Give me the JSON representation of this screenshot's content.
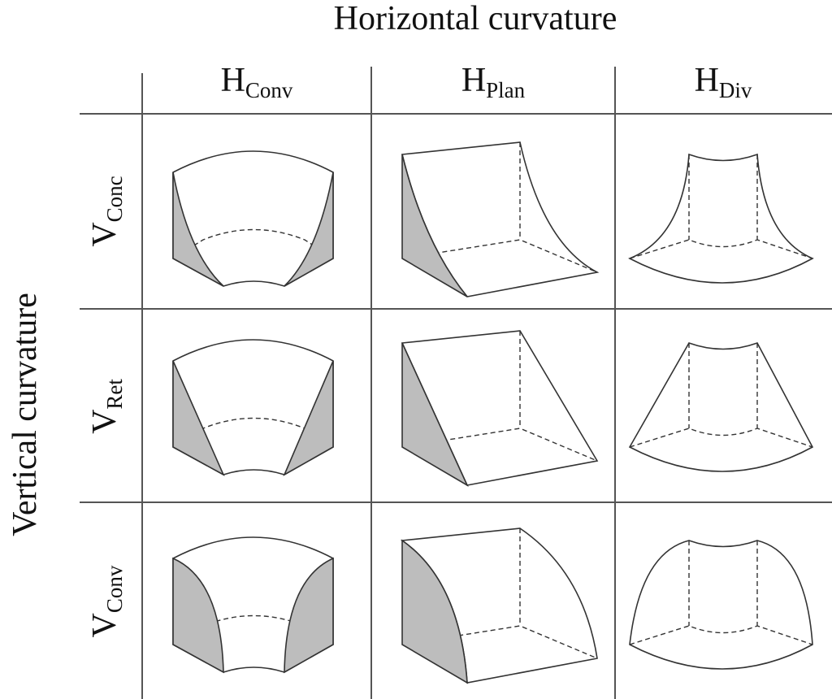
{
  "title": "Horizontal curvature",
  "y_axis_title": "Vertical curvature",
  "columns": [
    {
      "main": "H",
      "sub": "Conv"
    },
    {
      "main": "H",
      "sub": "Plan"
    },
    {
      "main": "H",
      "sub": "Div"
    }
  ],
  "rows": [
    {
      "main": "V",
      "sub": "Conc"
    },
    {
      "main": "V",
      "sub": "Ret"
    },
    {
      "main": "V",
      "sub": "Conv"
    }
  ]
}
